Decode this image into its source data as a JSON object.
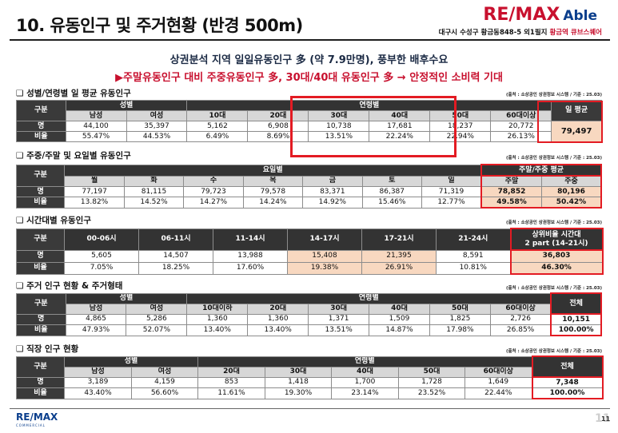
{
  "title": "10. 유동인구 및 주거현황 (반경 500m)",
  "logo": {
    "brand": "RE/MAX",
    "sub": "Able"
  },
  "address": {
    "prefix": "대구시 수성구 황금동848-5 외1필지",
    "highlight": "황금역 큐브스퀘어"
  },
  "subtitle1": "상권분석 지역 일일유동인구 多 (약 7.9만명), 풍부한 배후수요",
  "subtitle2": "▶주말유동인구 대비 주중유동인구 多, 30대/40대 유동인구 多 → 안정적인 소비력 기대",
  "source": "(출처 : 소상공인 상권정보 시스템 / 기준 : 25.03)",
  "row_labels": {
    "category": "구분",
    "count": "명",
    "ratio": "비율"
  },
  "sec1": {
    "heading": "❑ 성별/연령별 일 평균 유동인구",
    "gender": "성별",
    "age": "연령별",
    "total": "일 평균",
    "columns": [
      "남성",
      "여성",
      "10대",
      "20대",
      "30대",
      "40대",
      "50대",
      "60대이상"
    ],
    "counts": [
      "44,100",
      "35,397",
      "5,162",
      "6,908",
      "10,738",
      "17,681",
      "18,237",
      "20,772"
    ],
    "ratios": [
      "55.47%",
      "44.53%",
      "6.49%",
      "8.69%",
      "13.51%",
      "22.24%",
      "22.94%",
      "26.13%"
    ],
    "total_value": "79,497"
  },
  "sec2": {
    "heading": "❑ 주중/주말 및 요일별 유동인구",
    "group": "요일별",
    "group2": "주말/주중 평균",
    "columns": [
      "월",
      "화",
      "수",
      "목",
      "금",
      "토",
      "일",
      "주말",
      "주중"
    ],
    "counts": [
      "77,197",
      "81,115",
      "79,723",
      "79,578",
      "83,371",
      "86,387",
      "71,319",
      "78,852",
      "80,196"
    ],
    "ratios": [
      "13.82%",
      "14.52%",
      "14.27%",
      "14.24%",
      "14.92%",
      "15.46%",
      "12.77%",
      "49.58%",
      "50.42%"
    ]
  },
  "sec3": {
    "heading": "❑ 시간대별 유동인구",
    "columns": [
      "00-06시",
      "06-11시",
      "11-14시",
      "14-17시",
      "17-21시",
      "21-24시"
    ],
    "extra_header": [
      "상위비율 시간대",
      "2 part (14-21시)"
    ],
    "counts": [
      "5,605",
      "14,507",
      "13,988",
      "15,408",
      "21,395",
      "8,591",
      "36,803"
    ],
    "ratios": [
      "7.05%",
      "18.25%",
      "17.60%",
      "19.38%",
      "26.91%",
      "10.81%",
      "46.30%"
    ]
  },
  "sec4": {
    "heading": "❑ 주거 인구 현황 & 주거형태",
    "gender": "성별",
    "age": "연령별",
    "total": "전체",
    "columns": [
      "남성",
      "여성",
      "10대이하",
      "20대",
      "30대",
      "40대",
      "50대",
      "60대이상"
    ],
    "counts": [
      "4,865",
      "5,286",
      "1,360",
      "1,360",
      "1,371",
      "1,509",
      "1,825",
      "2,726",
      "10,151"
    ],
    "ratios": [
      "47.93%",
      "52.07%",
      "13.40%",
      "13.40%",
      "13.51%",
      "14.87%",
      "17.98%",
      "26.85%",
      "100.00%"
    ]
  },
  "sec5": {
    "heading": "❑ 직장 인구 현황",
    "gender": "성별",
    "age": "연령별",
    "total": "전체",
    "columns": [
      "남성",
      "여성",
      "20대",
      "30대",
      "40대",
      "50대",
      "60대이상"
    ],
    "counts": [
      "3,189",
      "4,159",
      "853",
      "1,418",
      "1,700",
      "1,728",
      "1,649",
      "7,348"
    ],
    "ratios": [
      "43.40%",
      "56.60%",
      "11.61%",
      "19.30%",
      "23.14%",
      "23.52%",
      "22.44%",
      "100.00%"
    ]
  },
  "footer": {
    "logo_a": "RE/",
    "logo_b": "MAX",
    "logo_sub": "COMMERCIAL",
    "page_bg": "11",
    "page": "11"
  },
  "colors": {
    "accent_red": "#c8102e",
    "brand_blue": "#0a3e8c",
    "highlight": "#f8d8c0",
    "box": "#e31b23"
  }
}
